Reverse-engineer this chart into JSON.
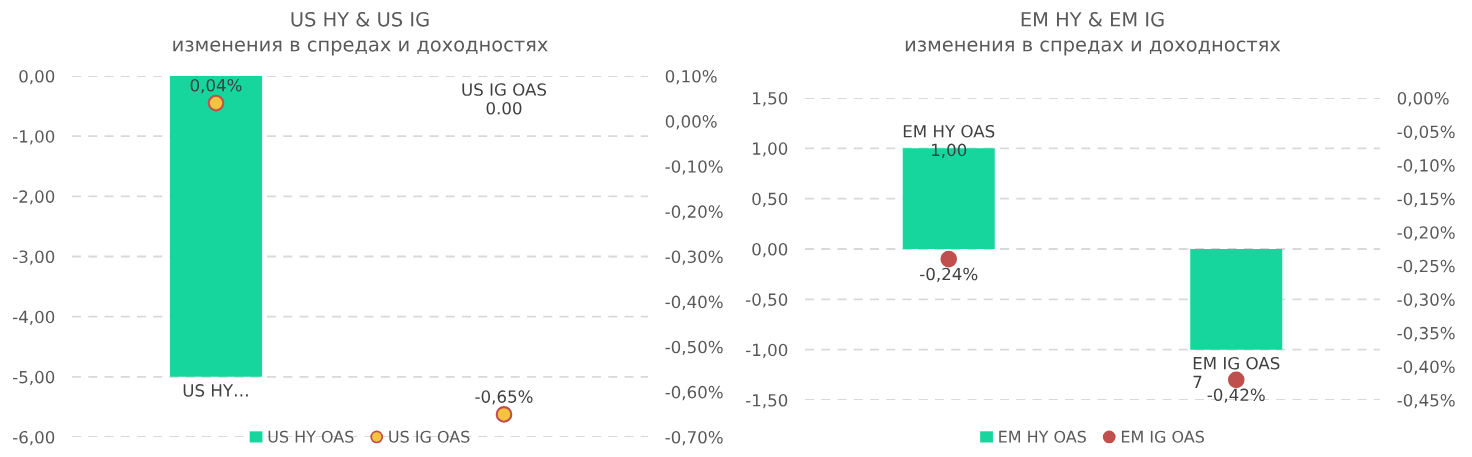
{
  "chart_data": [
    {
      "type": "bar",
      "title": "US HY & US IG",
      "subtitle": "изменения в спредах и доходностях",
      "categories": [
        null,
        null
      ],
      "series": [
        {
          "name": "US HY OAS",
          "color": "#16d69e",
          "values": [
            -5.0,
            0.0
          ],
          "value_labels": [
            "US HY…",
            "US IG OAS\n0.00"
          ]
        },
        {
          "name": "US IG OAS",
          "type": "scatter",
          "axis": "y2",
          "color": "#f5c43c",
          "values": [
            0.04,
            -0.65
          ],
          "value_labels": [
            "0,04%",
            "-0,65%"
          ]
        }
      ],
      "ylim": [
        -6,
        0
      ],
      "yticks": [
        {
          "value": 0,
          "label": "0,00"
        },
        {
          "value": -1,
          "label": "-1,00"
        },
        {
          "value": -2,
          "label": "-2,00"
        },
        {
          "value": -3,
          "label": "-3,00"
        },
        {
          "value": -4,
          "label": "-4,00"
        },
        {
          "value": -5,
          "label": "-5,00"
        },
        {
          "value": -6,
          "label": "-6,00"
        }
      ],
      "y2lim": [
        -0.7,
        0.1
      ],
      "y2ticks": [
        {
          "value": 0.1,
          "label": "0,10%"
        },
        {
          "value": 0,
          "label": "0,00%"
        },
        {
          "value": -0.1,
          "label": "-0,10%"
        },
        {
          "value": -0.2,
          "label": "-0,20%"
        },
        {
          "value": -0.3,
          "label": "-0,30%"
        },
        {
          "value": -0.4,
          "label": "-0,40%"
        },
        {
          "value": -0.5,
          "label": "-0,50%"
        },
        {
          "value": -0.6,
          "label": "-0,60%"
        },
        {
          "value": -0.7,
          "label": "-0,70%"
        }
      ],
      "grid": "y",
      "legend": "bottom",
      "marker": "circle"
    },
    {
      "type": "bar",
      "title": "EM HY & EM IG",
      "subtitle": "изменения в спредах и доходностях",
      "categories": [
        null,
        null
      ],
      "series": [
        {
          "name": "EM HY OAS",
          "color": "#16d69e",
          "values": [
            1.0,
            -1.0
          ],
          "value_labels": [
            "EM HY OAS\n1,00",
            "EM IG OAS\n7"
          ]
        },
        {
          "name": "EM IG OAS",
          "type": "scatter",
          "axis": "y2",
          "color": "#c0504d",
          "values": [
            -0.24,
            -0.42
          ],
          "value_labels": [
            "-0,24%",
            "-0,42%"
          ]
        }
      ],
      "ylim": [
        -1.5,
        1.5
      ],
      "yticks": [
        {
          "value": 1.5,
          "label": "1,50"
        },
        {
          "value": 1,
          "label": "1,00"
        },
        {
          "value": 0.5,
          "label": "0,50"
        },
        {
          "value": 0,
          "label": "0,00"
        },
        {
          "value": -0.5,
          "label": "-0,50"
        },
        {
          "value": -1,
          "label": "-1,00"
        },
        {
          "value": -1.5,
          "label": "-1,50"
        }
      ],
      "y2lim": [
        -0.45,
        0
      ],
      "y2ticks": [
        {
          "value": 0,
          "label": "0,00%"
        },
        {
          "value": -0.05,
          "label": "-0,05%"
        },
        {
          "value": -0.1,
          "label": "-0,10%"
        },
        {
          "value": -0.15,
          "label": "-0,15%"
        },
        {
          "value": -0.2,
          "label": "-0,20%"
        },
        {
          "value": -0.25,
          "label": "-0,25%"
        },
        {
          "value": -0.3,
          "label": "-0,30%"
        },
        {
          "value": -0.35,
          "label": "-0,35%"
        },
        {
          "value": -0.4,
          "label": "-0,40%"
        },
        {
          "value": -0.45,
          "label": "-0,45%"
        }
      ],
      "grid": "y",
      "legend": "bottom",
      "marker": "circle"
    }
  ]
}
